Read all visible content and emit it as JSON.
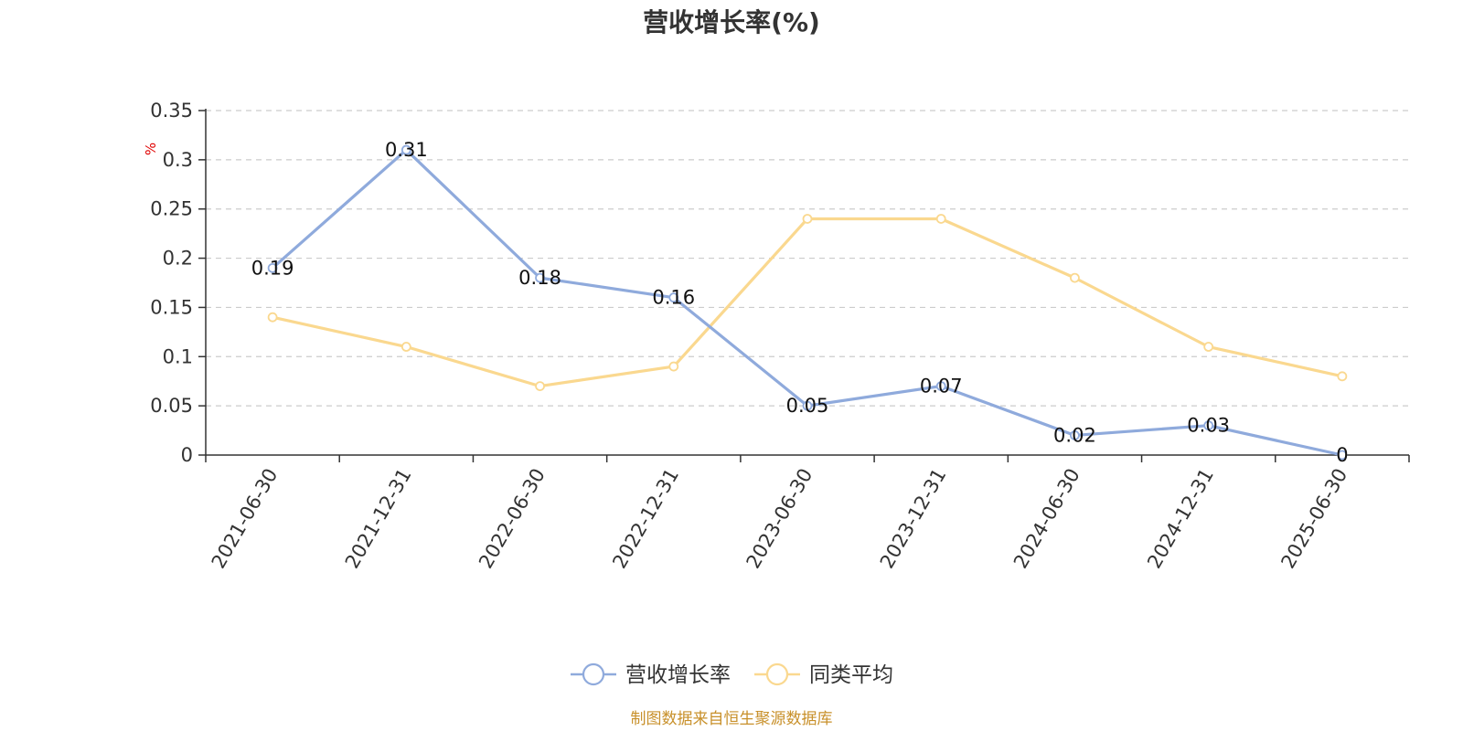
{
  "chart_data": {
    "type": "line",
    "title": "营收增长率(%)",
    "ylabel": "%",
    "categories": [
      "2021-06-30",
      "2021-12-31",
      "2022-06-30",
      "2022-12-31",
      "2023-06-30",
      "2023-12-31",
      "2024-06-30",
      "2024-12-31",
      "2025-06-30"
    ],
    "series": [
      {
        "name": "营收增长率",
        "color": "#8faadc",
        "values": [
          0.19,
          0.31,
          0.18,
          0.16,
          0.05,
          0.07,
          0.02,
          0.03,
          0
        ],
        "labels": [
          "0.19",
          "0.31",
          "0.18",
          "0.16",
          "0.05",
          "0.07",
          "0.02",
          "0.03",
          "0"
        ]
      },
      {
        "name": "同类平均",
        "color": "#fad88f",
        "values": [
          0.14,
          0.11,
          0.07,
          0.09,
          0.24,
          0.24,
          0.18,
          0.11,
          0.08
        ]
      }
    ],
    "ylim": [
      0,
      0.35
    ],
    "yticks": [
      "0",
      "0.05",
      "0.1",
      "0.15",
      "0.2",
      "0.25",
      "0.3",
      "0.35"
    ],
    "grid": true,
    "legend_position": "bottom-center"
  },
  "source_text": "制图数据来自恒生聚源数据库"
}
